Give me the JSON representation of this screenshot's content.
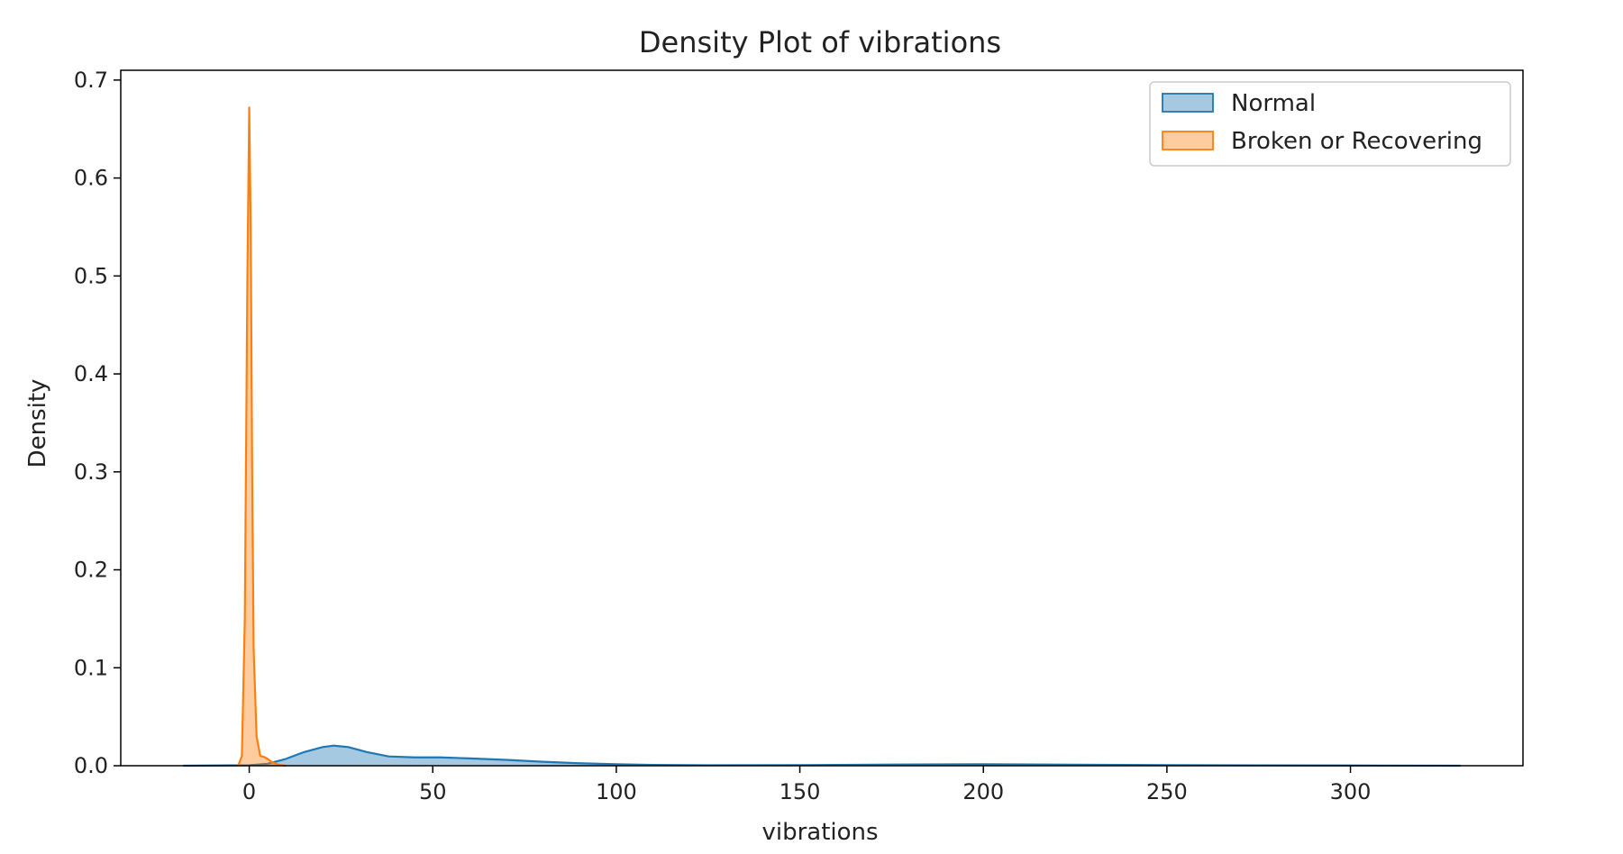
{
  "chart_data": {
    "type": "area",
    "title": "Density Plot of vibrations",
    "xlabel": "vibrations",
    "ylabel": "Density",
    "xlim": [
      -35,
      347
    ],
    "ylim": [
      0,
      0.71
    ],
    "xticks": [
      0,
      50,
      100,
      150,
      200,
      250,
      300
    ],
    "yticks": [
      0.0,
      0.1,
      0.2,
      0.3,
      0.4,
      0.5,
      0.6,
      0.7
    ],
    "xtick_labels": [
      "0",
      "50",
      "100",
      "150",
      "200",
      "250",
      "300"
    ],
    "ytick_labels": [
      "0.0",
      "0.1",
      "0.2",
      "0.3",
      "0.4",
      "0.5",
      "0.6",
      "0.7"
    ],
    "grid": false,
    "legend_position": "upper right",
    "series": [
      {
        "name": "Normal",
        "color": "#1f77b4",
        "x": [
          -18,
          0,
          5,
          10,
          15,
          20,
          23,
          27,
          32,
          38,
          45,
          52,
          60,
          70,
          80,
          90,
          100,
          110,
          125,
          150,
          175,
          200,
          225,
          250,
          275,
          300,
          330
        ],
        "y": [
          0,
          0.0005,
          0.002,
          0.007,
          0.014,
          0.019,
          0.0205,
          0.019,
          0.014,
          0.0095,
          0.0085,
          0.0085,
          0.0075,
          0.006,
          0.004,
          0.0025,
          0.0015,
          0.0008,
          0.0005,
          0.0006,
          0.0012,
          0.0015,
          0.001,
          0.0006,
          0.0004,
          0.0002,
          0
        ]
      },
      {
        "name": "Broken or Recovering",
        "color": "#ff7f0e",
        "x": [
          -3,
          -2,
          -1.2,
          -0.5,
          0,
          0.4,
          0.8,
          1.2,
          2,
          3,
          4,
          5,
          6,
          8,
          10
        ],
        "y": [
          0,
          0.01,
          0.15,
          0.5,
          0.672,
          0.55,
          0.3,
          0.12,
          0.03,
          0.01,
          0.009,
          0.007,
          0.004,
          0.001,
          0
        ]
      }
    ]
  }
}
